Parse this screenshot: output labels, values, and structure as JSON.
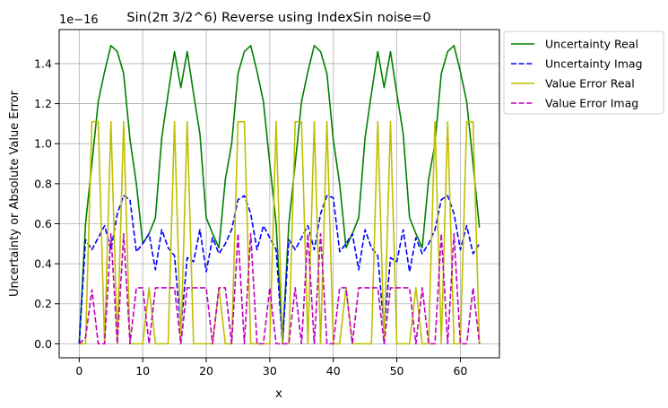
{
  "chart_data": {
    "type": "line",
    "title": "Sin(2π 3/2^6) Reverse using IndexSin noise=0",
    "xlabel": "x",
    "ylabel": "Uncertainty or Absolute Value Error",
    "y_offset_label": "1e−16",
    "xlim": [
      -3.15,
      66.15
    ],
    "ylim": [
      -0.07,
      1.57
    ],
    "x_ticks": [
      0,
      10,
      20,
      30,
      40,
      50,
      60
    ],
    "x_tick_labels": [
      "0",
      "10",
      "20",
      "30",
      "40",
      "50",
      "60"
    ],
    "y_ticks": [
      0.0,
      0.2,
      0.4,
      0.6,
      0.8,
      1.0,
      1.2,
      1.4
    ],
    "y_tick_labels": [
      "0.0",
      "0.2",
      "0.4",
      "0.6",
      "0.8",
      "1.0",
      "1.2",
      "1.4"
    ],
    "grid": true,
    "legend_position": "outside-right-top",
    "x": [
      0,
      1,
      2,
      3,
      4,
      5,
      6,
      7,
      8,
      9,
      10,
      11,
      12,
      13,
      14,
      15,
      16,
      17,
      18,
      19,
      20,
      21,
      22,
      23,
      24,
      25,
      26,
      27,
      28,
      29,
      30,
      31,
      32,
      33,
      34,
      35,
      36,
      37,
      38,
      39,
      40,
      41,
      42,
      43,
      44,
      45,
      46,
      47,
      48,
      49,
      50,
      51,
      52,
      53,
      54,
      55,
      56,
      57,
      58,
      59,
      60,
      61,
      62,
      63
    ],
    "series": [
      {
        "name": "Uncertainty Real",
        "color": "#008000",
        "dash": "solid",
        "values": [
          0.0,
          0.6,
          0.9,
          1.21,
          1.36,
          1.49,
          1.46,
          1.35,
          1.02,
          0.8,
          0.5,
          0.55,
          0.63,
          1.03,
          1.25,
          1.46,
          1.28,
          1.46,
          1.25,
          1.05,
          0.63,
          0.55,
          0.48,
          0.82,
          1.0,
          1.35,
          1.46,
          1.49,
          1.36,
          1.21,
          0.9,
          0.6,
          0.0,
          0.6,
          0.9,
          1.21,
          1.36,
          1.49,
          1.46,
          1.35,
          1.02,
          0.8,
          0.48,
          0.55,
          0.63,
          1.03,
          1.25,
          1.46,
          1.28,
          1.46,
          1.25,
          1.05,
          0.63,
          0.55,
          0.48,
          0.82,
          1.0,
          1.35,
          1.46,
          1.49,
          1.36,
          1.21,
          0.9,
          0.58
        ]
      },
      {
        "name": "Uncertainty Imag",
        "color": "#0000ff",
        "dash": "dashed",
        "values": [
          0.0,
          0.52,
          0.47,
          0.53,
          0.59,
          0.47,
          0.65,
          0.74,
          0.72,
          0.46,
          0.5,
          0.55,
          0.37,
          0.57,
          0.48,
          0.44,
          0.07,
          0.43,
          0.41,
          0.57,
          0.36,
          0.53,
          0.45,
          0.5,
          0.57,
          0.72,
          0.74,
          0.65,
          0.47,
          0.59,
          0.53,
          0.47,
          0.0,
          0.52,
          0.47,
          0.53,
          0.59,
          0.47,
          0.65,
          0.74,
          0.73,
          0.46,
          0.5,
          0.55,
          0.37,
          0.57,
          0.48,
          0.44,
          0.07,
          0.43,
          0.41,
          0.57,
          0.36,
          0.53,
          0.45,
          0.5,
          0.57,
          0.72,
          0.74,
          0.65,
          0.47,
          0.59,
          0.45,
          0.5
        ]
      },
      {
        "name": "Value Error Real",
        "color": "#bfbf00",
        "dash": "solid",
        "values": [
          0.0,
          0.0,
          1.11,
          1.11,
          0.0,
          1.11,
          0.0,
          1.11,
          0.0,
          0.0,
          0.0,
          0.28,
          0.0,
          0.0,
          0.0,
          1.11,
          0.0,
          1.11,
          0.0,
          0.0,
          0.0,
          0.0,
          0.28,
          0.0,
          0.0,
          1.11,
          1.11,
          0.0,
          0.0,
          0.0,
          0.0,
          1.11,
          0.0,
          0.0,
          1.11,
          1.11,
          0.0,
          1.11,
          0.0,
          1.11,
          0.0,
          0.0,
          0.28,
          0.0,
          0.0,
          0.0,
          0.0,
          1.11,
          0.0,
          1.11,
          0.0,
          0.0,
          0.0,
          0.28,
          0.0,
          0.0,
          1.11,
          0.0,
          1.11,
          0.0,
          0.0,
          1.11,
          1.11,
          0.0
        ]
      },
      {
        "name": "Value Error Imag",
        "color": "#bf00bf",
        "dash": "dashed",
        "values": [
          0.0,
          0.03,
          0.27,
          0.0,
          0.0,
          0.55,
          0.0,
          0.55,
          0.0,
          0.28,
          0.28,
          0.0,
          0.28,
          0.28,
          0.28,
          0.28,
          0.0,
          0.28,
          0.28,
          0.28,
          0.28,
          0.0,
          0.28,
          0.28,
          0.0,
          0.55,
          0.0,
          0.55,
          0.0,
          0.0,
          0.28,
          0.0,
          0.0,
          0.0,
          0.28,
          0.0,
          0.55,
          0.0,
          0.55,
          0.0,
          0.0,
          0.28,
          0.28,
          0.0,
          0.28,
          0.28,
          0.28,
          0.28,
          0.0,
          0.28,
          0.28,
          0.28,
          0.28,
          0.0,
          0.28,
          0.0,
          0.0,
          0.55,
          0.0,
          0.55,
          0.0,
          0.0,
          0.28,
          0.0
        ]
      }
    ]
  }
}
